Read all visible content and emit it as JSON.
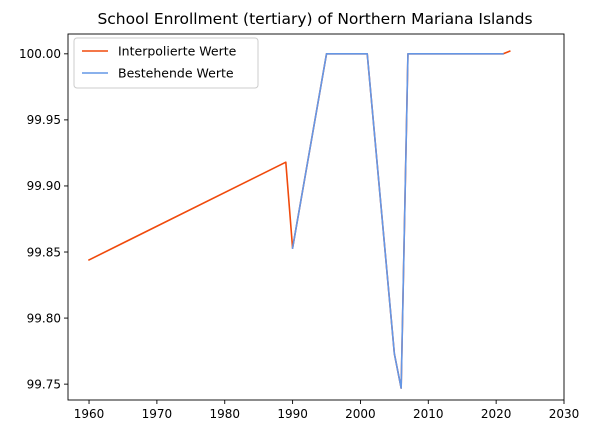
{
  "chart_data": {
    "type": "line",
    "title": "School Enrollment (tertiary) of Northern Mariana Islands",
    "xlabel": "",
    "ylabel": "",
    "xlim": [
      1956.9,
      2030
    ],
    "ylim": [
      99.738,
      100.015
    ],
    "x_ticks": [
      1960,
      1970,
      1980,
      1990,
      2000,
      2010,
      2020,
      2030
    ],
    "y_ticks": [
      99.75,
      99.8,
      99.85,
      99.9,
      99.95,
      100.0
    ],
    "y_tick_labels": [
      "99.75",
      "99.80",
      "99.85",
      "99.90",
      "99.95",
      "100.00"
    ],
    "legend_position": "top-left",
    "series": [
      {
        "name": "Interpolierte Werte",
        "color": "#f04a0c",
        "x": [
          1960,
          1989,
          1990,
          1995,
          2001,
          2005,
          2006,
          2007,
          2021,
          2022
        ],
        "values": [
          99.844,
          99.918,
          99.853,
          100.0,
          100.0,
          99.773,
          99.747,
          100.0,
          100.0,
          100.002
        ]
      },
      {
        "name": "Bestehende Werte",
        "color": "#6497e6",
        "x": [
          1990,
          1995,
          2001,
          2005,
          2006,
          2007,
          2021
        ],
        "values": [
          99.853,
          100.0,
          100.0,
          99.773,
          99.747,
          100.0,
          100.0
        ]
      }
    ]
  }
}
